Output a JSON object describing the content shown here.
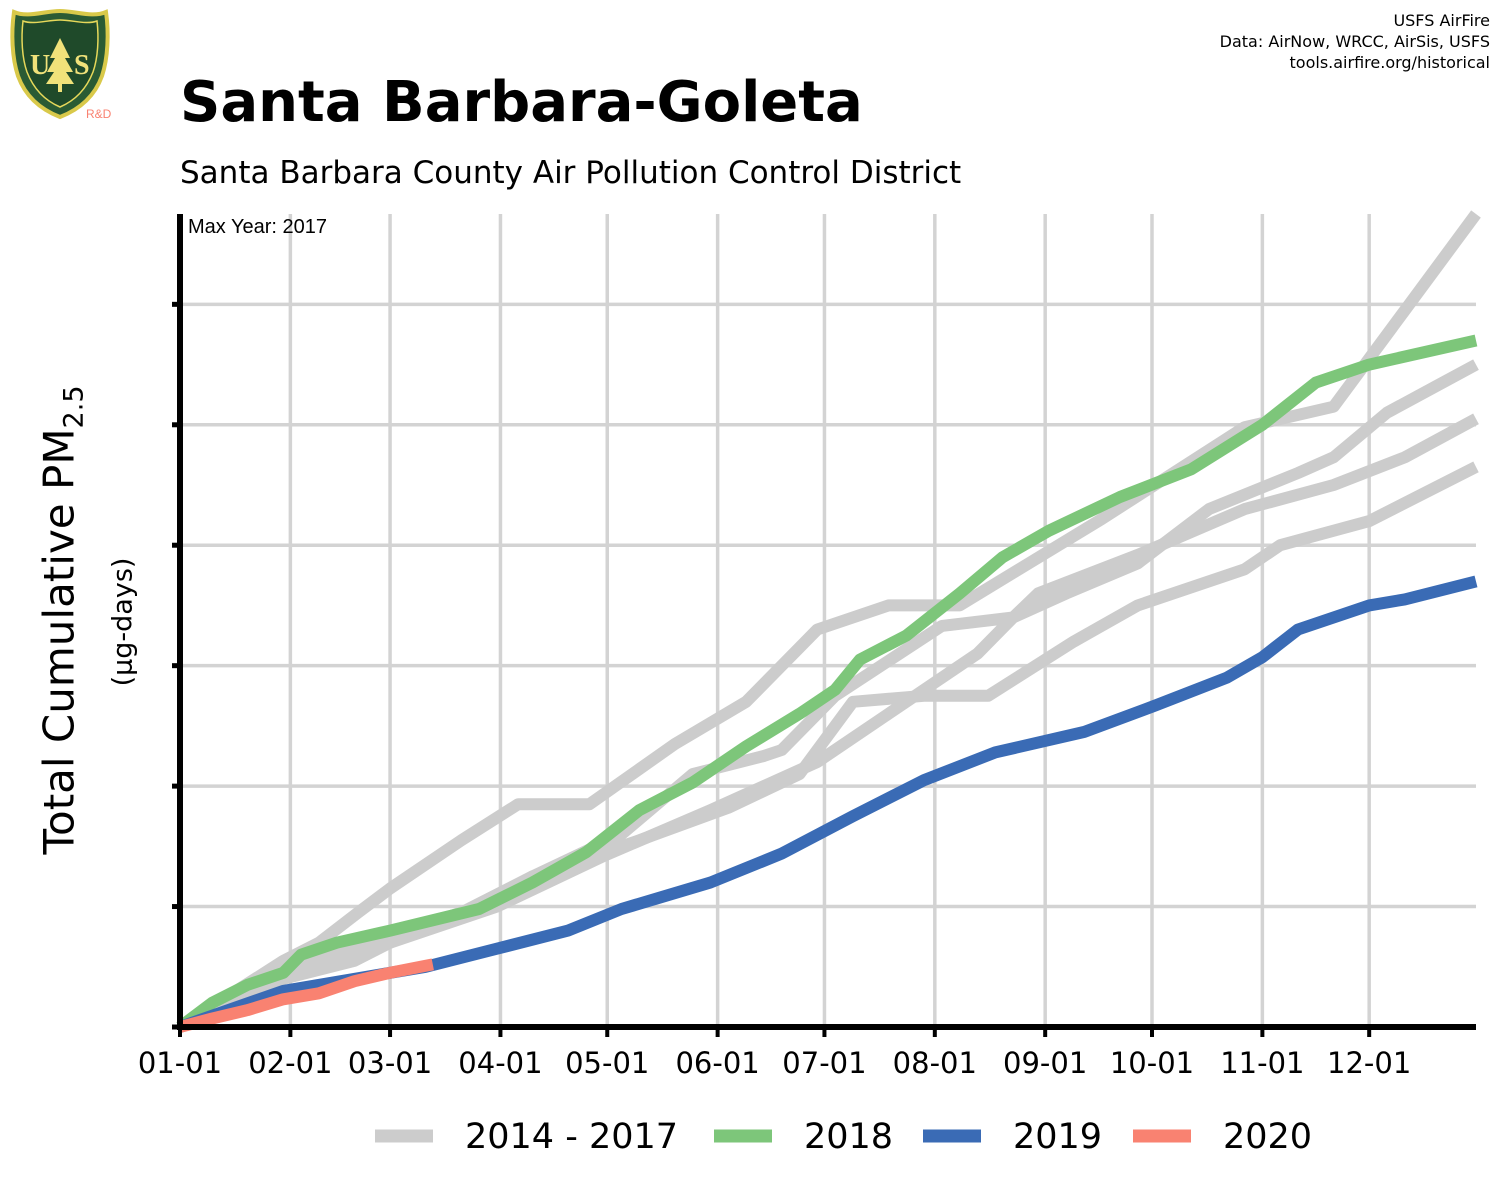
{
  "header": {
    "title": "Santa Barbara-Goleta",
    "subtitle": "Santa Barbara County Air Pollution Control District",
    "credits": [
      "USFS AirFire",
      "Data: AirNow, WRCC, AirSis, USFS",
      "tools.airfire.org/historical"
    ],
    "logo": {
      "top_text": "FOREST SERVICE",
      "letters": "U S",
      "bottom_text": "DEPARTMENT OF AGRICULTURE",
      "tag": "R&D",
      "icon": "usfs-shield-icon"
    }
  },
  "colors": {
    "gray": "#cccccc",
    "green": "#7dc67a",
    "blue": "#3a6bb5",
    "salmon": "#f98271",
    "grid": "#d3d3d3",
    "axis": "#000000"
  },
  "chart_data": {
    "type": "line",
    "title": "Santa Barbara-Goleta",
    "subtitle": "Santa Barbara County Air Pollution Control District",
    "xlabel": "",
    "ylabel": "Total Cumulative PM",
    "ylabel_sub": "2.5",
    "yunit": "(µg-days)",
    "annotation": "Max Year: 2017",
    "x_axis": {
      "type": "day-of-year",
      "range": [
        1,
        365
      ],
      "ticks": [
        "01-01",
        "02-01",
        "03-01",
        "04-01",
        "05-01",
        "06-01",
        "07-01",
        "08-01",
        "09-01",
        "10-01",
        "11-01",
        "12-01"
      ],
      "tick_days": [
        1,
        32,
        60,
        91,
        121,
        152,
        182,
        213,
        244,
        274,
        305,
        335
      ]
    },
    "y_axis": {
      "range": [
        0,
        6.75
      ],
      "tick_values": [
        0,
        1,
        2,
        3,
        4,
        5,
        6
      ],
      "tick_labels_shown": false
    },
    "grid": true,
    "legend_position": "bottom",
    "legend": [
      "2014 - 2017",
      "2018",
      "2019",
      "2020"
    ],
    "series": [
      {
        "name": "2014 - 2017",
        "color": "#cccccc",
        "points": [
          [
            1,
            0
          ],
          [
            30,
            0.55
          ],
          [
            40,
            0.7
          ],
          [
            51,
            0.95
          ],
          [
            60,
            1.15
          ],
          [
            80,
            1.55
          ],
          [
            96,
            1.85
          ],
          [
            116,
            1.85
          ],
          [
            140,
            2.35
          ],
          [
            160,
            2.7
          ],
          [
            180,
            3.3
          ],
          [
            200,
            3.5
          ],
          [
            220,
            3.5
          ],
          [
            260,
            4.22
          ],
          [
            300,
            4.98
          ],
          [
            325,
            5.15
          ],
          [
            345,
            5.95
          ],
          [
            365,
            6.75
          ]
        ]
      },
      {
        "name": "2014 - 2017",
        "color": "#cccccc",
        "points": [
          [
            1,
            0
          ],
          [
            30,
            0.4
          ],
          [
            60,
            0.7
          ],
          [
            90,
            1.0
          ],
          [
            120,
            1.42
          ],
          [
            150,
            1.8
          ],
          [
            180,
            2.2
          ],
          [
            200,
            2.6
          ],
          [
            225,
            3.1
          ],
          [
            235,
            3.4
          ],
          [
            250,
            3.6
          ],
          [
            270,
            3.85
          ],
          [
            290,
            4.3
          ],
          [
            315,
            4.6
          ],
          [
            325,
            4.73
          ],
          [
            340,
            5.1
          ],
          [
            365,
            5.5
          ]
        ]
      },
      {
        "name": "2014 - 2017",
        "color": "#cccccc",
        "points": [
          [
            1,
            0
          ],
          [
            30,
            0.4
          ],
          [
            50,
            0.55
          ],
          [
            70,
            0.85
          ],
          [
            90,
            1.05
          ],
          [
            100,
            1.25
          ],
          [
            125,
            1.6
          ],
          [
            145,
            2.1
          ],
          [
            165,
            2.25
          ],
          [
            170,
            2.3
          ],
          [
            185,
            2.75
          ],
          [
            215,
            3.33
          ],
          [
            235,
            3.4
          ],
          [
            242,
            3.6
          ],
          [
            270,
            3.92
          ],
          [
            300,
            4.3
          ],
          [
            325,
            4.5
          ],
          [
            345,
            4.73
          ],
          [
            365,
            5.05
          ]
        ]
      },
      {
        "name": "2014 - 2017",
        "color": "#cccccc",
        "points": [
          [
            1,
            0
          ],
          [
            30,
            0.5
          ],
          [
            50,
            0.65
          ],
          [
            60,
            0.75
          ],
          [
            80,
            0.95
          ],
          [
            100,
            1.25
          ],
          [
            130,
            1.55
          ],
          [
            155,
            1.82
          ],
          [
            175,
            2.1
          ],
          [
            190,
            2.7
          ],
          [
            210,
            2.75
          ],
          [
            228,
            2.75
          ],
          [
            252,
            3.2
          ],
          [
            270,
            3.5
          ],
          [
            300,
            3.8
          ],
          [
            310,
            4.0
          ],
          [
            335,
            4.2
          ],
          [
            365,
            4.65
          ]
        ]
      },
      {
        "name": "2018",
        "color": "#7dc67a",
        "points": [
          [
            1,
            0
          ],
          [
            10,
            0.2
          ],
          [
            20,
            0.35
          ],
          [
            30,
            0.45
          ],
          [
            35,
            0.6
          ],
          [
            45,
            0.7
          ],
          [
            60,
            0.8
          ],
          [
            85,
            0.98
          ],
          [
            100,
            1.2
          ],
          [
            115,
            1.45
          ],
          [
            130,
            1.8
          ],
          [
            145,
            2.03
          ],
          [
            160,
            2.33
          ],
          [
            175,
            2.6
          ],
          [
            185,
            2.8
          ],
          [
            192,
            3.05
          ],
          [
            205,
            3.25
          ],
          [
            220,
            3.6
          ],
          [
            232,
            3.9
          ],
          [
            245,
            4.12
          ],
          [
            265,
            4.4
          ],
          [
            285,
            4.63
          ],
          [
            305,
            5.0
          ],
          [
            320,
            5.35
          ],
          [
            335,
            5.5
          ],
          [
            365,
            5.7
          ]
        ]
      },
      {
        "name": "2019",
        "color": "#3a6bb5",
        "points": [
          [
            1,
            0
          ],
          [
            30,
            0.3
          ],
          [
            60,
            0.45
          ],
          [
            70,
            0.5
          ],
          [
            90,
            0.65
          ],
          [
            110,
            0.8
          ],
          [
            125,
            0.98
          ],
          [
            150,
            1.2
          ],
          [
            170,
            1.44
          ],
          [
            190,
            1.75
          ],
          [
            210,
            2.05
          ],
          [
            230,
            2.28
          ],
          [
            255,
            2.45
          ],
          [
            275,
            2.67
          ],
          [
            295,
            2.9
          ],
          [
            305,
            3.07
          ],
          [
            315,
            3.3
          ],
          [
            335,
            3.5
          ],
          [
            345,
            3.55
          ],
          [
            365,
            3.7
          ]
        ]
      },
      {
        "name": "2020",
        "color": "#f98271",
        "points": [
          [
            1,
            0
          ],
          [
            10,
            0.07
          ],
          [
            20,
            0.14
          ],
          [
            30,
            0.23
          ],
          [
            40,
            0.28
          ],
          [
            50,
            0.38
          ],
          [
            60,
            0.45
          ],
          [
            72,
            0.52
          ]
        ]
      }
    ]
  }
}
